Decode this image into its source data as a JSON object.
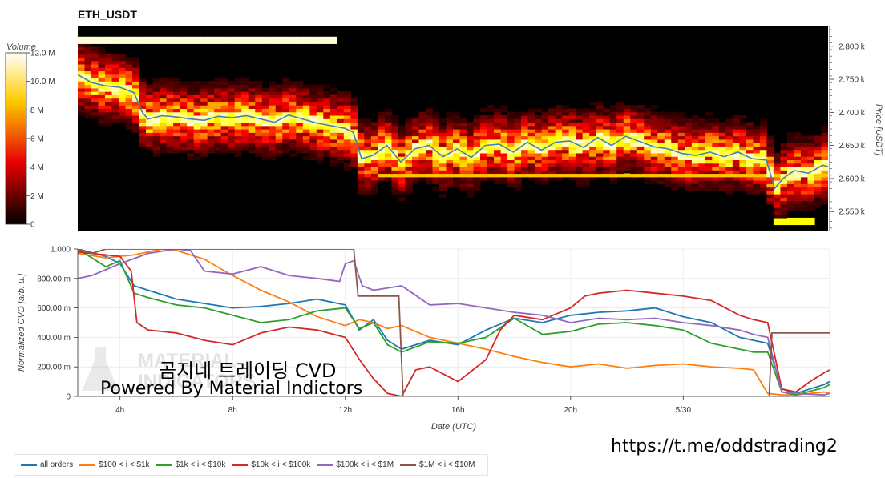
{
  "page": {
    "title": "ETH_USDT",
    "overlay_title": "곰지네 트레이딩 CVD",
    "overlay_subtitle": "Powered By Material Indictors",
    "link": "https://t.me/oddstrading2",
    "watermark_text": [
      "MATERIAL",
      "INDICATORS"
    ]
  },
  "colorbar": {
    "title": "Volume",
    "ticks": [
      "12.0 M",
      "10.0 M",
      "8 M",
      "6 M",
      "4 M",
      "2 M",
      "0"
    ],
    "range": [
      0,
      12000000
    ],
    "colormap": "hot"
  },
  "chart_data": [
    {
      "type": "heatmap",
      "title": "ETH_USDT",
      "ylabel": "Price [USDT]",
      "ylim": [
        2520,
        2830
      ],
      "y_ticks": [
        "2.800 k",
        "2.750 k",
        "2.700 k",
        "2.650 k",
        "2.600 k",
        "2.550 k"
      ],
      "y_tick_values": [
        2800,
        2750,
        2700,
        2650,
        2600,
        2550
      ],
      "xlim": [
        2.5,
        29.2
      ],
      "price_line_color": "#4a7fb0",
      "price_series": {
        "x": [
          2.5,
          3.0,
          3.5,
          4.0,
          4.5,
          4.8,
          5.0,
          5.5,
          6.0,
          6.5,
          7.0,
          7.5,
          8.0,
          8.5,
          9.0,
          9.5,
          10.0,
          10.5,
          11.0,
          11.5,
          12.0,
          12.3,
          12.6,
          13.0,
          13.5,
          14.0,
          14.5,
          15.0,
          15.5,
          16.0,
          16.5,
          17.0,
          17.5,
          18.0,
          18.5,
          19.0,
          19.5,
          20.0,
          20.5,
          21.0,
          21.5,
          22.0,
          22.5,
          23.0,
          23.5,
          24.0,
          24.5,
          25.0,
          25.5,
          26.0,
          26.5,
          27.0,
          27.3,
          27.6,
          28.0,
          28.5,
          29.0,
          29.2
        ],
        "y": [
          2757,
          2745,
          2740,
          2738,
          2730,
          2700,
          2690,
          2695,
          2693,
          2690,
          2688,
          2694,
          2692,
          2695,
          2690,
          2685,
          2696,
          2690,
          2684,
          2680,
          2676,
          2670,
          2630,
          2635,
          2650,
          2625,
          2645,
          2650,
          2633,
          2645,
          2632,
          2650,
          2652,
          2640,
          2655,
          2643,
          2655,
          2657,
          2647,
          2662,
          2650,
          2664,
          2656,
          2648,
          2645,
          2638,
          2635,
          2640,
          2633,
          2640,
          2630,
          2628,
          2585,
          2600,
          2612,
          2608,
          2620,
          2618
        ]
      },
      "levels": [
        {
          "price": 2808,
          "x_start": 2.5,
          "x_end": 11.8,
          "intensity": 11500000
        },
        {
          "price": 2605,
          "x_start": 13.2,
          "x_end": 29.2,
          "intensity": 8000000
        },
        {
          "price": 2535,
          "x_start": 27.2,
          "x_end": 28.8,
          "intensity": 9000000
        }
      ]
    },
    {
      "type": "line",
      "xlabel": "Date (UTC)",
      "ylabel": "Normalized CVD [arb. u.]",
      "ylim": [
        0,
        1
      ],
      "xlim": [
        2.5,
        29.2
      ],
      "x_ticks": [
        4,
        8,
        12,
        16,
        20,
        24
      ],
      "x_tick_labels": [
        "4h",
        "8h",
        "12h",
        "16h",
        "20h",
        "5/30"
      ],
      "y_ticks": [
        0,
        0.2,
        0.4,
        0.6,
        0.8,
        1.0
      ],
      "y_tick_labels": [
        "0",
        "200.00 m",
        "400.00 m",
        "600.00 m",
        "800.00 m",
        "1.000"
      ],
      "grid": true,
      "legend_position": "bottom",
      "series": [
        {
          "name": "all orders",
          "color": "#1f77b4",
          "x": [
            2.5,
            3.5,
            4.0,
            4.5,
            5.0,
            6.0,
            7.0,
            8.0,
            9.0,
            10.0,
            11.0,
            12.0,
            12.5,
            13.0,
            13.5,
            14.0,
            15.0,
            16.0,
            17.0,
            18.0,
            19.0,
            20.0,
            21.0,
            22.0,
            23.0,
            24.0,
            25.0,
            26.0,
            26.5,
            27.0,
            27.5,
            28.0,
            29.0,
            29.2
          ],
          "y": [
            1.0,
            0.95,
            0.9,
            0.75,
            0.72,
            0.66,
            0.63,
            0.6,
            0.61,
            0.63,
            0.66,
            0.62,
            0.45,
            0.52,
            0.38,
            0.32,
            0.38,
            0.35,
            0.45,
            0.53,
            0.5,
            0.55,
            0.57,
            0.58,
            0.6,
            0.54,
            0.5,
            0.4,
            0.38,
            0.36,
            0.05,
            0.02,
            0.08,
            0.1
          ]
        },
        {
          "name": "$100 < i < $1k",
          "color": "#ff7f0e",
          "x": [
            2.5,
            3.5,
            4.5,
            5.5,
            6.0,
            7.0,
            8.0,
            9.0,
            10.0,
            11.0,
            12.0,
            12.5,
            13.0,
            13.5,
            14.0,
            15.0,
            16.0,
            17.0,
            18.0,
            19.0,
            20.0,
            21.0,
            22.0,
            23.0,
            24.0,
            25.0,
            26.0,
            26.5,
            27.0,
            27.5,
            28.0,
            29.0,
            29.2
          ],
          "y": [
            0.97,
            0.94,
            0.96,
            1.0,
            0.99,
            0.93,
            0.82,
            0.72,
            0.64,
            0.54,
            0.48,
            0.52,
            0.5,
            0.46,
            0.48,
            0.4,
            0.36,
            0.32,
            0.27,
            0.23,
            0.2,
            0.22,
            0.19,
            0.21,
            0.22,
            0.2,
            0.19,
            0.18,
            0.02,
            0.01,
            0.01,
            0.03,
            0.02
          ]
        },
        {
          "name": "$1k < i < $10k",
          "color": "#2ca02c",
          "x": [
            2.5,
            3.5,
            4.0,
            4.5,
            5.0,
            6.0,
            7.0,
            8.0,
            9.0,
            10.0,
            11.0,
            12.0,
            12.5,
            13.0,
            13.5,
            14.0,
            15.0,
            16.0,
            17.0,
            18.0,
            19.0,
            20.0,
            21.0,
            22.0,
            23.0,
            24.0,
            25.0,
            26.0,
            26.5,
            27.0,
            27.5,
            28.0,
            29.0,
            29.2
          ],
          "y": [
            1.0,
            0.88,
            0.92,
            0.7,
            0.67,
            0.62,
            0.6,
            0.55,
            0.5,
            0.52,
            0.58,
            0.6,
            0.46,
            0.5,
            0.35,
            0.3,
            0.37,
            0.36,
            0.4,
            0.53,
            0.42,
            0.44,
            0.49,
            0.5,
            0.48,
            0.45,
            0.36,
            0.32,
            0.3,
            0.3,
            0.03,
            0.01,
            0.06,
            0.08
          ]
        },
        {
          "name": "$10k < i < $100k",
          "color": "#d62728",
          "x": [
            2.5,
            3.5,
            4.0,
            4.4,
            4.6,
            5.0,
            6.0,
            7.0,
            8.0,
            9.0,
            10.0,
            11.0,
            12.0,
            12.5,
            13.0,
            13.5,
            14.0,
            14.5,
            15.0,
            16.0,
            17.0,
            17.5,
            18.0,
            19.0,
            20.0,
            20.5,
            21.0,
            22.0,
            23.0,
            24.0,
            25.0,
            26.0,
            26.5,
            27.0,
            27.5,
            28.0,
            28.5,
            29.0,
            29.2
          ],
          "y": [
            0.98,
            0.96,
            0.95,
            0.85,
            0.5,
            0.45,
            0.43,
            0.38,
            0.35,
            0.43,
            0.47,
            0.45,
            0.4,
            0.25,
            0.12,
            0.02,
            0.0,
            0.18,
            0.2,
            0.1,
            0.25,
            0.45,
            0.55,
            0.52,
            0.6,
            0.68,
            0.7,
            0.72,
            0.7,
            0.68,
            0.65,
            0.55,
            0.52,
            0.5,
            0.05,
            0.03,
            0.1,
            0.16,
            0.18
          ]
        },
        {
          "name": "$100k < i < $1M",
          "color": "#9467bd",
          "x": [
            2.5,
            3.0,
            4.0,
            5.0,
            6.0,
            6.5,
            7.0,
            8.0,
            9.0,
            10.0,
            11.0,
            11.8,
            12.0,
            12.3,
            12.6,
            13.0,
            14.0,
            15.0,
            16.0,
            17.0,
            18.0,
            19.0,
            20.0,
            21.0,
            22.0,
            23.0,
            24.0,
            25.0,
            26.0,
            26.5,
            27.0,
            27.5,
            28.0,
            29.0,
            29.2
          ],
          "y": [
            0.8,
            0.82,
            0.9,
            0.97,
            1.0,
            0.99,
            0.85,
            0.83,
            0.88,
            0.82,
            0.8,
            0.78,
            0.9,
            0.92,
            0.75,
            0.72,
            0.75,
            0.62,
            0.63,
            0.6,
            0.57,
            0.55,
            0.5,
            0.53,
            0.52,
            0.53,
            0.5,
            0.48,
            0.45,
            0.42,
            0.4,
            0.03,
            0.02,
            0.01,
            0.02
          ]
        },
        {
          "name": "$1M < i < $10M",
          "color": "#8c564b",
          "x": [
            2.5,
            3.0,
            3.5,
            4.0,
            5.0,
            12.3,
            12.45,
            13.9,
            14.05,
            26.7,
            27.05,
            27.15,
            29.2
          ],
          "y": [
            1.0,
            0.97,
            1.0,
            1.0,
            1.0,
            1.0,
            0.68,
            0.68,
            0.0,
            0.0,
            0.0,
            0.43,
            0.43
          ]
        }
      ]
    }
  ]
}
